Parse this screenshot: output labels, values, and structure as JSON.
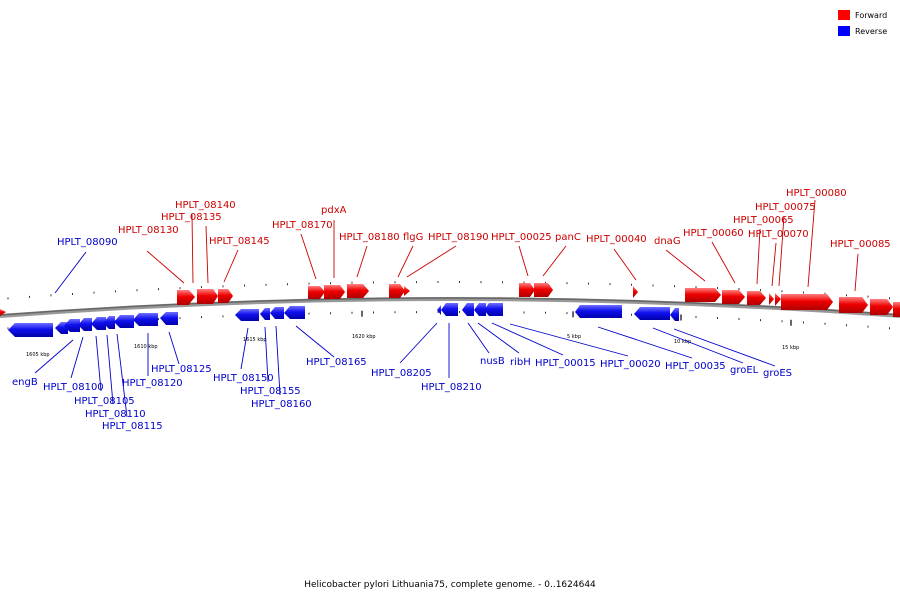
{
  "legend": {
    "forward": {
      "label": "Forward",
      "color": "#ff0000"
    },
    "reverse": {
      "label": "Reverse",
      "color": "#0000ff"
    }
  },
  "caption": "Helicobacter pylori Lithuania75, complete genome. - 0..1624644",
  "scale_labels": [
    "1605 kbp",
    "1610 kbp",
    "1615 kbp",
    "1620 kbp",
    "5 kbp",
    "10 kbp",
    "15 kbp"
  ],
  "forward_labels": [
    "HPLT_08140",
    "HPLT_08135",
    "HPLT_08130",
    "HPLT_08145",
    "HPLT_08170",
    "pdxA",
    "HPLT_08180",
    "flgG",
    "HPLT_08190",
    "HPLT_00025",
    "panC",
    "HPLT_00040",
    "dnaG",
    "HPLT_00060",
    "HPLT_00065",
    "HPLT_00070",
    "HPLT_00075",
    "HPLT_00080",
    "HPLT_00085"
  ],
  "reverse_labels": [
    "HPLT_08090",
    "engB",
    "HPLT_08100",
    "HPLT_08105",
    "HPLT_08110",
    "HPLT_08115",
    "HPLT_08120",
    "HPLT_08125",
    "HPLT_08150",
    "HPLT_08155",
    "HPLT_08160",
    "HPLT_08165",
    "HPLT_08205",
    "HPLT_08210",
    "nusB",
    "ribH",
    "HPLT_00015",
    "HPLT_00020",
    "HPLT_00035",
    "groEL",
    "groES"
  ]
}
